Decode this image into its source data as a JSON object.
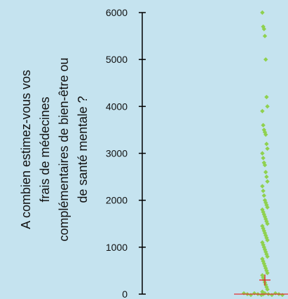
{
  "chart_data": {
    "type": "scatter",
    "title": "",
    "xlabel": "",
    "ylabel_lines": [
      "A combien estimez-vous vos",
      "frais de médecines",
      "complémentaires de bien-être ou",
      "de santé mentale ?"
    ],
    "ylim": [
      0,
      6000
    ],
    "yticks": [
      {
        "label": "0",
        "value": 0
      },
      {
        "label": "1000",
        "value": 1000
      },
      {
        "label": "2000",
        "value": 2000
      },
      {
        "label": "3000",
        "value": 3000
      },
      {
        "label": "4000",
        "value": 4000
      },
      {
        "label": "5000",
        "value": 5000
      },
      {
        "label": "6000",
        "value": 6000
      }
    ],
    "grid": false,
    "points": [
      6000,
      5700,
      5650,
      5500,
      5000,
      4200,
      4000,
      3900,
      3600,
      3500,
      3450,
      3400,
      3200,
      3100,
      3000,
      2900,
      2800,
      2750,
      2600,
      2500,
      2400,
      2300,
      2200,
      2100,
      2000,
      1950,
      1900,
      1850,
      1800,
      1750,
      1700,
      1650,
      1600,
      1550,
      1500,
      1450,
      1400,
      1350,
      1300,
      1250,
      1200,
      1150,
      1100,
      1050,
      1000,
      950,
      900,
      850,
      800,
      750,
      700,
      650,
      600,
      550,
      500,
      450,
      400,
      350,
      300,
      250,
      200,
      150,
      100,
      50,
      0
    ],
    "mean": 300,
    "median": 0,
    "colors": {
      "background": "#c5e3ef",
      "points": "#8fd14f",
      "mean_marker": "#e03030",
      "axis": "#000000",
      "text": "#111111"
    }
  }
}
